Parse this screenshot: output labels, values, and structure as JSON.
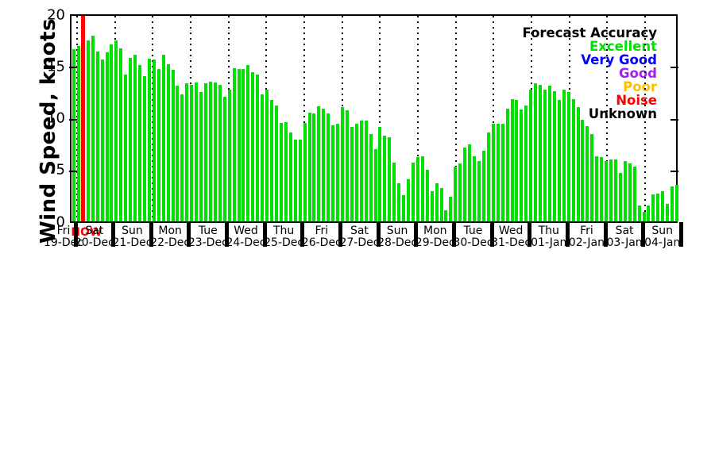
{
  "page": {
    "background": "#ffffff"
  },
  "chart_data": {
    "type": "bar",
    "title": "",
    "ylabel": "Wind Speed, knots",
    "ylim": [
      0,
      20
    ],
    "yticks": [
      0,
      5,
      10,
      15,
      20
    ],
    "grid": "vertical dotted lines at each day boundary",
    "legend_position": "top-right inside plot",
    "bar_color": "#00e000",
    "axis_color": "#000000",
    "now_marker": {
      "label": "NOW",
      "color": "#ff0000",
      "slot_index": 2
    },
    "legend": {
      "title": "Forecast Accuracy",
      "title_color": "#000000",
      "entries": [
        {
          "label": "Excellent",
          "color": "#00e000"
        },
        {
          "label": "Very Good",
          "color": "#0000ff"
        },
        {
          "label": "Good",
          "color": "#a020f0"
        },
        {
          "label": "Poor",
          "color": "#ffc000"
        },
        {
          "label": "Noise",
          "color": "#ff0000"
        },
        {
          "label": "Unknown",
          "color": "#000000"
        }
      ]
    },
    "x_day_labels": [
      {
        "day": "Fri",
        "date": "19-Dec"
      },
      {
        "day": "Sat",
        "date": "20-Dec"
      },
      {
        "day": "Sun",
        "date": "21-Dec"
      },
      {
        "day": "Mon",
        "date": "22-Dec"
      },
      {
        "day": "Tue",
        "date": "23-Dec"
      },
      {
        "day": "Wed",
        "date": "24-Dec"
      },
      {
        "day": "Thu",
        "date": "25-Dec"
      },
      {
        "day": "Fri",
        "date": "26-Dec"
      },
      {
        "day": "Sat",
        "date": "27-Dec"
      },
      {
        "day": "Sun",
        "date": "28-Dec"
      },
      {
        "day": "Mon",
        "date": "29-Dec"
      },
      {
        "day": "Tue",
        "date": "30-Dec"
      },
      {
        "day": "Wed",
        "date": "31-Dec"
      },
      {
        "day": "Thu",
        "date": "01-Jan"
      },
      {
        "day": "Fri",
        "date": "02-Jan"
      },
      {
        "day": "Sat",
        "date": "03-Jan"
      },
      {
        "day": "Sun",
        "date": "04-Jan"
      }
    ],
    "values_knots": [
      16.6,
      16.9,
      null,
      17.5,
      17.9,
      16.4,
      15.6,
      16.3,
      17.1,
      17.5,
      16.7,
      14.2,
      15.8,
      16.1,
      15.1,
      14.0,
      15.7,
      15.6,
      14.7,
      16.1,
      15.2,
      14.6,
      13.1,
      12.3,
      13.3,
      13.2,
      13.4,
      12.5,
      13.3,
      13.5,
      13.4,
      13.2,
      12.0,
      12.7,
      14.8,
      14.7,
      14.7,
      15.1,
      14.4,
      14.2,
      12.3,
      12.7,
      11.7,
      11.2,
      9.5,
      9.6,
      8.6,
      7.9,
      7.9,
      9.5,
      10.5,
      10.4,
      11.1,
      10.9,
      10.4,
      9.3,
      9.4,
      11.0,
      10.7,
      9.1,
      9.4,
      9.7,
      9.7,
      8.4,
      7.0,
      9.1,
      8.3,
      8.1,
      5.7,
      3.7,
      2.5,
      4.1,
      5.7,
      6.2,
      6.3,
      5.0,
      2.9,
      3.7,
      3.2,
      1.1,
      2.4,
      5.3,
      5.6,
      7.1,
      7.4,
      6.3,
      5.8,
      6.8,
      8.6,
      9.4,
      9.4,
      9.4,
      10.9,
      11.8,
      11.7,
      10.8,
      11.2,
      12.7,
      13.3,
      13.2,
      12.7,
      13.1,
      12.6,
      11.7,
      12.7,
      12.5,
      11.8,
      11.0,
      9.8,
      9.2,
      8.4,
      6.3,
      6.2,
      5.8,
      6.0,
      6.0,
      4.7,
      5.8,
      5.6,
      5.3,
      1.5,
      0.9,
      1.5,
      2.6,
      2.7,
      2.9,
      1.7,
      3.4,
      3.5
    ]
  }
}
